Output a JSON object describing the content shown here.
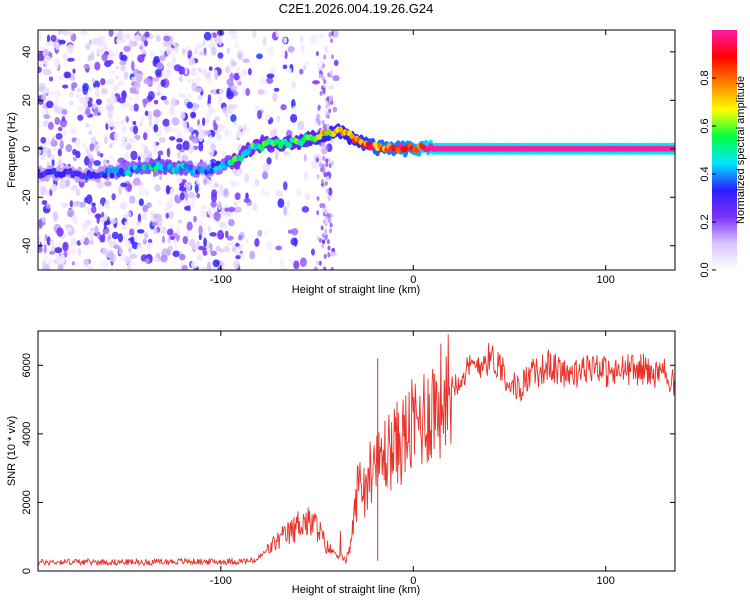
{
  "title": "C2E1.2026.004.19.26.G24",
  "chart_data": [
    {
      "type": "heatmap",
      "name": "spectrogram",
      "xlabel": "Height of straight line (km)",
      "ylabel": "Frequency (Hz)",
      "xlim": [
        -195,
        136
      ],
      "ylim": [
        -50,
        49
      ],
      "xticks": [
        -100,
        0,
        100
      ],
      "yticks": [
        -40,
        -20,
        0,
        20,
        40
      ],
      "colorbar": {
        "label": "Normalized spectral amplitude",
        "range": [
          0,
          1
        ],
        "ticks": [
          0.0,
          0.2,
          0.4,
          0.6,
          0.8
        ],
        "tick_labels": [
          "0.0",
          "0.2",
          "0.4",
          "0.6",
          "0.8"
        ],
        "colors": [
          "#ffffff",
          "#d9c4ff",
          "#7b2ff7",
          "#2b1fff",
          "#00e5ff",
          "#00ff40",
          "#ffff00",
          "#ff8000",
          "#ff0000",
          "#ff1aa8"
        ]
      },
      "ridge": {
        "x": [
          -195,
          -180,
          -165,
          -150,
          -135,
          -120,
          -110,
          -100,
          -92,
          -85,
          -75,
          -65,
          -55,
          -45,
          -38,
          -30,
          -22,
          -15,
          -8,
          0,
          5,
          12,
          20,
          40,
          60,
          80,
          100,
          120,
          136
        ],
        "y": [
          -10,
          -10,
          -11,
          -9,
          -7,
          -8,
          -9,
          -7,
          -5,
          0,
          2,
          2,
          4,
          6,
          7,
          4,
          1,
          0,
          0,
          0,
          0,
          0,
          0,
          0,
          0,
          0,
          0,
          0,
          0
        ],
        "amplitude": [
          0.3,
          0.3,
          0.3,
          0.4,
          0.45,
          0.45,
          0.35,
          0.4,
          0.5,
          0.5,
          0.55,
          0.55,
          0.6,
          0.7,
          0.7,
          0.75,
          0.8,
          0.85,
          0.85,
          0.9,
          0.95,
          1.0,
          1.0,
          1.0,
          1.0,
          1.0,
          1.0,
          1.0,
          1.0
        ]
      },
      "noise_region_x": [
        -195,
        -40
      ]
    },
    {
      "type": "line",
      "name": "snr",
      "xlabel": "Height of straight line (km)",
      "ylabel": "SNR (10 * v/v)",
      "xlim": [
        -195,
        136
      ],
      "ylim": [
        0,
        7000
      ],
      "xticks": [
        -100,
        0,
        100
      ],
      "yticks": [
        0,
        2000,
        4000,
        6000
      ],
      "color": "#e8322a",
      "x": [
        -195,
        -180,
        -160,
        -140,
        -120,
        -100,
        -90,
        -82,
        -78,
        -70,
        -62,
        -58,
        -55,
        -50,
        -45,
        -40,
        -35,
        -32,
        -30,
        -28,
        -25,
        -22,
        -20,
        -18,
        -15,
        -10,
        -5,
        0,
        5,
        10,
        15,
        20,
        25,
        30,
        35,
        40,
        45,
        50,
        55,
        60,
        65,
        70,
        75,
        80,
        85,
        90,
        95,
        100,
        105,
        110,
        115,
        120,
        125,
        130,
        136
      ],
      "values": [
        250,
        270,
        260,
        260,
        280,
        270,
        280,
        300,
        500,
        900,
        1200,
        1500,
        1400,
        1300,
        700,
        500,
        300,
        900,
        2000,
        2700,
        2500,
        3000,
        2800,
        3100,
        3400,
        3600,
        3900,
        4200,
        4500,
        4800,
        5000,
        5400,
        5700,
        5900,
        6100,
        6200,
        6050,
        5500,
        5300,
        5700,
        5800,
        6000,
        5850,
        5800,
        5700,
        5900,
        6050,
        5800,
        5750,
        5900,
        5850,
        5900,
        5700,
        5800,
        5500
      ]
    }
  ]
}
